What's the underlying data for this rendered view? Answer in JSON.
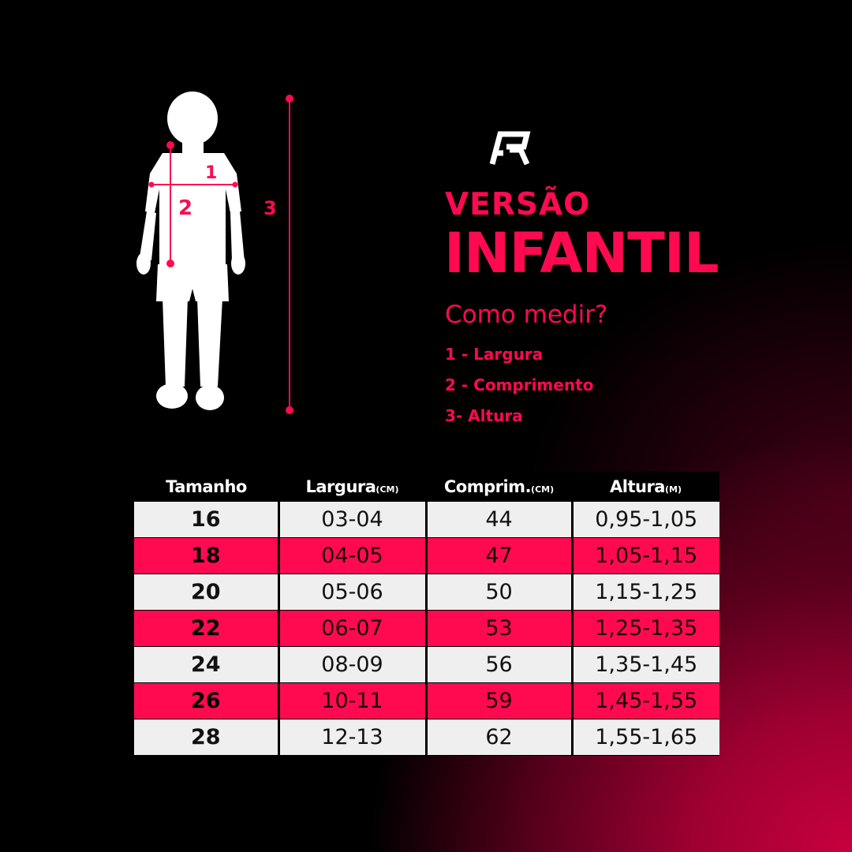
{
  "colors": {
    "accent": "#ff0a50",
    "row_light": "#efefef",
    "background": "#000000"
  },
  "figure": {
    "label_1": "1",
    "label_2": "2",
    "label_3": "3"
  },
  "logo": {
    "icon": "brand-logo-icon"
  },
  "title": {
    "line1": "VERSÃO",
    "line2": "INFANTIL"
  },
  "how_to": {
    "question": "Como medir?",
    "items": [
      "1 - Largura",
      "2 - Comprimento",
      "3- Altura"
    ]
  },
  "table": {
    "headers": [
      {
        "label": "Tamanho",
        "unit": ""
      },
      {
        "label": "Largura",
        "unit": "(CM)"
      },
      {
        "label": "Comprim.",
        "unit": "(CM)"
      },
      {
        "label": "Altura",
        "unit": "(M)"
      }
    ],
    "rows": [
      [
        "16",
        "03-04",
        "44",
        "0,95-1,05"
      ],
      [
        "18",
        "04-05",
        "47",
        "1,05-1,15"
      ],
      [
        "20",
        "05-06",
        "50",
        "1,15-1,25"
      ],
      [
        "22",
        "06-07",
        "53",
        "1,25-1,35"
      ],
      [
        "24",
        "08-09",
        "56",
        "1,35-1,45"
      ],
      [
        "26",
        "10-11",
        "59",
        "1,45-1,55"
      ],
      [
        "28",
        "12-13",
        "62",
        "1,55-1,65"
      ]
    ]
  }
}
